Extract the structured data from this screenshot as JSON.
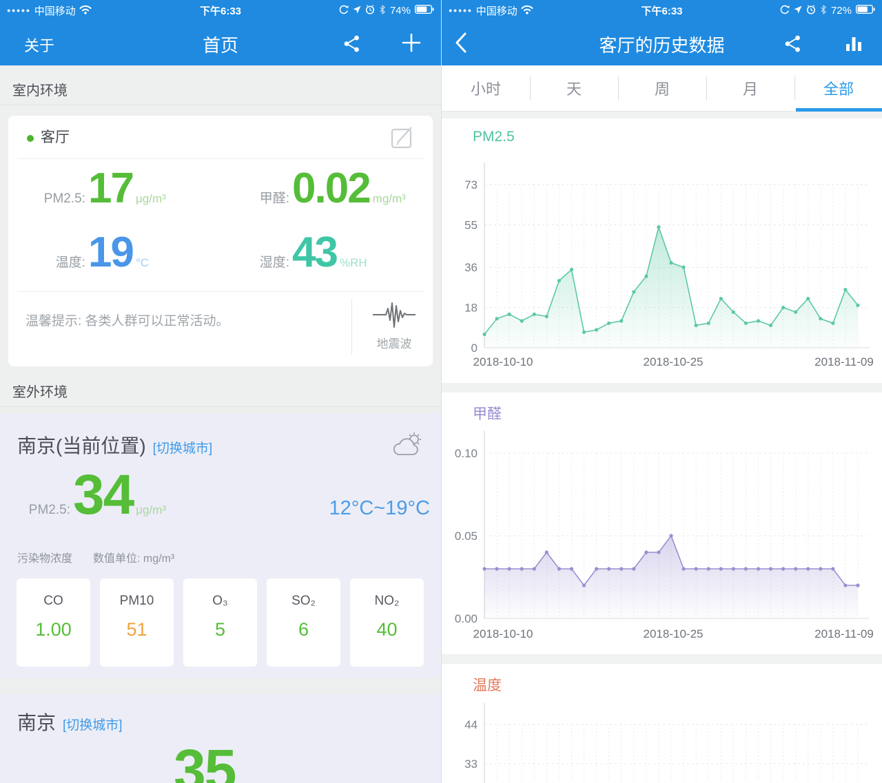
{
  "left": {
    "status": {
      "signal": "●●●●●",
      "carrier": "中国移动",
      "time": "下午6:33",
      "battery": "74%"
    },
    "nav": {
      "about": "关于",
      "title": "首页"
    },
    "indoor_section": "室内环境",
    "indoor": {
      "room": "客厅",
      "metrics": {
        "pm25": {
          "label": "PM2.5:",
          "value": "17",
          "unit": "μg/m³"
        },
        "hcho": {
          "label": "甲醛:",
          "value": "0.02",
          "unit": "mg/m³"
        },
        "temp": {
          "label": "温度:",
          "value": "19",
          "unit": "°C"
        },
        "hum": {
          "label": "湿度:",
          "value": "43",
          "unit": "%RH"
        }
      },
      "tip": "温馨提示: 各类人群可以正常活动。",
      "seismic_label": "地震波"
    },
    "outdoor_section": "室外环境",
    "outdoor": {
      "city": "南京(当前位置)",
      "switch_city": "[切换城市]",
      "pm25": {
        "label": "PM2.5:",
        "value": "34",
        "unit": "μg/m³"
      },
      "temp_range": "12°C~19°C",
      "conc_label": "污染物浓度",
      "unit_label": "数值单位: mg/m³",
      "pollutants": [
        {
          "name": "CO",
          "value": "1.00",
          "status": "good"
        },
        {
          "name": "PM10",
          "value": "51",
          "status": "moderate"
        },
        {
          "name": "O₃",
          "value": "5",
          "status": "good"
        },
        {
          "name": "SO₂",
          "value": "6",
          "status": "good"
        },
        {
          "name": "NO₂",
          "value": "40",
          "status": "good"
        }
      ]
    },
    "city2": {
      "city": "南京",
      "switch_city": "[切换城市]",
      "pm25_value": "35"
    }
  },
  "right": {
    "status": {
      "signal": "●●●●●",
      "carrier": "中国移动",
      "time": "下午6:33",
      "battery": "72%"
    },
    "nav": {
      "title": "客厅的历史数据"
    },
    "tabs": [
      {
        "label": "小时",
        "selected": false
      },
      {
        "label": "天",
        "selected": false
      },
      {
        "label": "周",
        "selected": false
      },
      {
        "label": "月",
        "selected": false
      },
      {
        "label": "全部",
        "selected": true
      }
    ]
  },
  "chart_data": [
    {
      "type": "line",
      "title": "PM2.5",
      "color": "#5cc9a2",
      "x_tick_labels": [
        "2018-10-10",
        "2018-10-25",
        "2018-11-09"
      ],
      "y_ticks": [
        0,
        18,
        36,
        55,
        73
      ],
      "y_tick_labels": [
        "0",
        "18",
        "36",
        "55",
        "73"
      ],
      "ylim": [
        0,
        73
      ],
      "grid": true,
      "area_fill": true,
      "values": [
        6,
        13,
        15,
        12,
        15,
        14,
        30,
        35,
        7,
        8,
        11,
        12,
        25,
        32,
        54,
        38,
        36,
        10,
        11,
        22,
        16,
        11,
        12,
        10,
        18,
        16,
        22,
        13,
        11,
        26,
        19
      ]
    },
    {
      "type": "line",
      "title": "甲醛",
      "color": "#988fd0",
      "x_tick_labels": [
        "2018-10-10",
        "2018-10-25",
        "2018-11-09"
      ],
      "y_ticks": [
        0,
        0.05,
        0.1
      ],
      "y_tick_labels": [
        "0.00",
        "0.05",
        "0.10"
      ],
      "ylim": [
        0,
        0.1
      ],
      "grid": true,
      "area_fill": true,
      "values": [
        0.03,
        0.03,
        0.03,
        0.03,
        0.03,
        0.04,
        0.03,
        0.03,
        0.02,
        0.03,
        0.03,
        0.03,
        0.03,
        0.04,
        0.04,
        0.05,
        0.03,
        0.03,
        0.03,
        0.03,
        0.03,
        0.03,
        0.03,
        0.03,
        0.03,
        0.03,
        0.03,
        0.03,
        0.03,
        0.02,
        0.02
      ]
    },
    {
      "type": "line",
      "title": "温度",
      "color": "#e1795b",
      "y_ticks": [
        44,
        33
      ],
      "y_tick_labels": [
        "44",
        "33"
      ],
      "grid": true,
      "values": [],
      "truncated": true
    }
  ]
}
